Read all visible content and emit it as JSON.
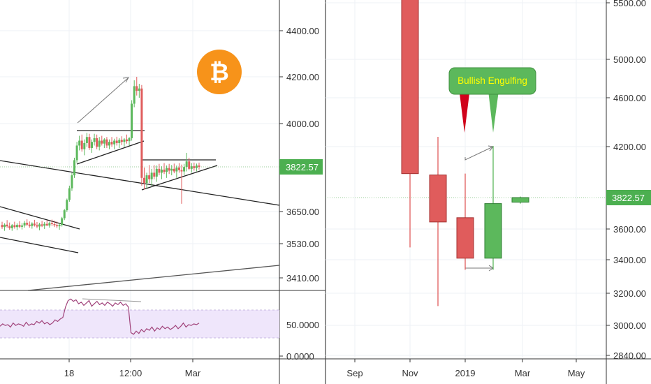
{
  "colors": {
    "up": "#5cb85c",
    "down": "#e05c5c",
    "grid": "#eef1f5",
    "axis_text": "#333333",
    "price_tag": "#4caf50",
    "rsi_band": "#efe6fb",
    "rsi_line": "#a0427a",
    "btc_orange": "#f7931a",
    "callout_green": "#5cb85c",
    "callout_red": "#d0021b"
  },
  "logo": {
    "icon": "bitcoin-icon",
    "glyph": "₿"
  },
  "chart_data": [
    {
      "type": "candlestick",
      "y_ticks": [
        "4400.00",
        "4200.00",
        "4000.00",
        "3650.00",
        "3530.00",
        "3410.00"
      ],
      "y_tick_values": [
        4400,
        4200,
        4000,
        3650,
        3530,
        3410
      ],
      "x_ticks": [
        "18",
        "12:00",
        "Mar"
      ],
      "ylim": [
        3340,
        4490
      ],
      "last_price": "3822.57",
      "candles": [
        {
          "o": 3600,
          "h": 3612,
          "l": 3585,
          "c": 3592
        },
        {
          "o": 3592,
          "h": 3606,
          "l": 3578,
          "c": 3601
        },
        {
          "o": 3601,
          "h": 3618,
          "l": 3590,
          "c": 3595
        },
        {
          "o": 3595,
          "h": 3609,
          "l": 3582,
          "c": 3588
        },
        {
          "o": 3588,
          "h": 3603,
          "l": 3578,
          "c": 3599
        },
        {
          "o": 3599,
          "h": 3612,
          "l": 3586,
          "c": 3592
        },
        {
          "o": 3592,
          "h": 3606,
          "l": 3581,
          "c": 3600
        },
        {
          "o": 3600,
          "h": 3614,
          "l": 3588,
          "c": 3593
        },
        {
          "o": 3593,
          "h": 3607,
          "l": 3583,
          "c": 3598
        },
        {
          "o": 3598,
          "h": 3615,
          "l": 3590,
          "c": 3608
        },
        {
          "o": 3608,
          "h": 3621,
          "l": 3596,
          "c": 3601
        },
        {
          "o": 3601,
          "h": 3613,
          "l": 3590,
          "c": 3596
        },
        {
          "o": 3596,
          "h": 3610,
          "l": 3586,
          "c": 3605
        },
        {
          "o": 3605,
          "h": 3619,
          "l": 3594,
          "c": 3599
        },
        {
          "o": 3599,
          "h": 3611,
          "l": 3588,
          "c": 3594
        },
        {
          "o": 3594,
          "h": 3608,
          "l": 3580,
          "c": 3602
        },
        {
          "o": 3602,
          "h": 3615,
          "l": 3592,
          "c": 3597
        },
        {
          "o": 3597,
          "h": 3611,
          "l": 3585,
          "c": 3604
        },
        {
          "o": 3604,
          "h": 3618,
          "l": 3596,
          "c": 3598
        },
        {
          "o": 3598,
          "h": 3612,
          "l": 3590,
          "c": 3607
        },
        {
          "o": 3607,
          "h": 3620,
          "l": 3596,
          "c": 3603
        },
        {
          "o": 3603,
          "h": 3616,
          "l": 3592,
          "c": 3599
        },
        {
          "o": 3599,
          "h": 3613,
          "l": 3588,
          "c": 3595
        },
        {
          "o": 3595,
          "h": 3606,
          "l": 3582,
          "c": 3600
        },
        {
          "o": 3600,
          "h": 3630,
          "l": 3594,
          "c": 3625
        },
        {
          "o": 3625,
          "h": 3660,
          "l": 3618,
          "c": 3655
        },
        {
          "o": 3655,
          "h": 3700,
          "l": 3648,
          "c": 3695
        },
        {
          "o": 3695,
          "h": 3750,
          "l": 3688,
          "c": 3740
        },
        {
          "o": 3740,
          "h": 3800,
          "l": 3730,
          "c": 3790
        },
        {
          "o": 3790,
          "h": 3860,
          "l": 3780,
          "c": 3850
        },
        {
          "o": 3850,
          "h": 3925,
          "l": 3840,
          "c": 3910
        },
        {
          "o": 3910,
          "h": 3950,
          "l": 3890,
          "c": 3930
        },
        {
          "o": 3930,
          "h": 3955,
          "l": 3885,
          "c": 3895
        },
        {
          "o": 3895,
          "h": 3935,
          "l": 3870,
          "c": 3920
        },
        {
          "o": 3920,
          "h": 3962,
          "l": 3905,
          "c": 3945
        },
        {
          "o": 3945,
          "h": 3958,
          "l": 3892,
          "c": 3900
        },
        {
          "o": 3900,
          "h": 3935,
          "l": 3880,
          "c": 3925
        },
        {
          "o": 3925,
          "h": 3958,
          "l": 3910,
          "c": 3940
        },
        {
          "o": 3940,
          "h": 3955,
          "l": 3895,
          "c": 3905
        },
        {
          "o": 3905,
          "h": 3945,
          "l": 3890,
          "c": 3930
        },
        {
          "o": 3930,
          "h": 3950,
          "l": 3910,
          "c": 3918
        },
        {
          "o": 3918,
          "h": 3940,
          "l": 3900,
          "c": 3935
        },
        {
          "o": 3935,
          "h": 3945,
          "l": 3900,
          "c": 3910
        },
        {
          "o": 3910,
          "h": 3935,
          "l": 3895,
          "c": 3925
        },
        {
          "o": 3925,
          "h": 3945,
          "l": 3905,
          "c": 3915
        },
        {
          "o": 3915,
          "h": 3938,
          "l": 3895,
          "c": 3930
        },
        {
          "o": 3930,
          "h": 3946,
          "l": 3910,
          "c": 3920
        },
        {
          "o": 3920,
          "h": 3940,
          "l": 3900,
          "c": 3933
        },
        {
          "o": 3933,
          "h": 3948,
          "l": 3912,
          "c": 3925
        },
        {
          "o": 3925,
          "h": 3940,
          "l": 3905,
          "c": 3935
        },
        {
          "o": 3935,
          "h": 3955,
          "l": 3918,
          "c": 3928
        },
        {
          "o": 3928,
          "h": 3945,
          "l": 3910,
          "c": 3940
        },
        {
          "o": 3940,
          "h": 4100,
          "l": 3930,
          "c": 4085
        },
        {
          "o": 4085,
          "h": 4185,
          "l": 4070,
          "c": 4160
        },
        {
          "o": 4160,
          "h": 4200,
          "l": 4120,
          "c": 4140
        },
        {
          "o": 4140,
          "h": 4170,
          "l": 4110,
          "c": 4150
        },
        {
          "o": 4150,
          "h": 4165,
          "l": 3750,
          "c": 3780
        },
        {
          "o": 3780,
          "h": 3820,
          "l": 3735,
          "c": 3760
        },
        {
          "o": 3760,
          "h": 3800,
          "l": 3740,
          "c": 3790
        },
        {
          "o": 3790,
          "h": 3830,
          "l": 3760,
          "c": 3775
        },
        {
          "o": 3775,
          "h": 3815,
          "l": 3750,
          "c": 3800
        },
        {
          "o": 3800,
          "h": 3830,
          "l": 3775,
          "c": 3785
        },
        {
          "o": 3785,
          "h": 3828,
          "l": 3765,
          "c": 3815
        },
        {
          "o": 3815,
          "h": 3835,
          "l": 3790,
          "c": 3800
        },
        {
          "o": 3800,
          "h": 3825,
          "l": 3775,
          "c": 3812
        },
        {
          "o": 3812,
          "h": 3838,
          "l": 3795,
          "c": 3803
        },
        {
          "o": 3803,
          "h": 3828,
          "l": 3780,
          "c": 3818
        },
        {
          "o": 3818,
          "h": 3835,
          "l": 3795,
          "c": 3808
        },
        {
          "o": 3808,
          "h": 3830,
          "l": 3790,
          "c": 3815
        },
        {
          "o": 3815,
          "h": 3836,
          "l": 3798,
          "c": 3805
        },
        {
          "o": 3805,
          "h": 3828,
          "l": 3780,
          "c": 3820
        },
        {
          "o": 3820,
          "h": 3838,
          "l": 3800,
          "c": 3810
        },
        {
          "o": 3810,
          "h": 3832,
          "l": 3680,
          "c": 3805
        },
        {
          "o": 3805,
          "h": 3835,
          "l": 3790,
          "c": 3822
        },
        {
          "o": 3822,
          "h": 3880,
          "l": 3805,
          "c": 3845
        },
        {
          "o": 3845,
          "h": 3860,
          "l": 3810,
          "c": 3815
        },
        {
          "o": 3815,
          "h": 3838,
          "l": 3800,
          "c": 3825
        },
        {
          "o": 3825,
          "h": 3840,
          "l": 3808,
          "c": 3818
        },
        {
          "o": 3818,
          "h": 3836,
          "l": 3805,
          "c": 3828
        },
        {
          "o": 3828,
          "h": 3840,
          "l": 3812,
          "c": 3822.57
        }
      ],
      "rsi": {
        "y_ticks": [
          "50.0000",
          "0.0000"
        ],
        "values": [
          48,
          51,
          49,
          50,
          47,
          52,
          49,
          51,
          50,
          48,
          53,
          49,
          51,
          50,
          54,
          52,
          55,
          51,
          53,
          50,
          52,
          56,
          54,
          57,
          59,
          72,
          80,
          82,
          79,
          81,
          76,
          78,
          74,
          77,
          80,
          73,
          76,
          79,
          75,
          77,
          74,
          78,
          76,
          73,
          77,
          75,
          78,
          74,
          76,
          72,
          40,
          38,
          42,
          39,
          44,
          41,
          45,
          43,
          47,
          42,
          46,
          44,
          48,
          45,
          47,
          44,
          46,
          49,
          45,
          48,
          52,
          47,
          50,
          49,
          51,
          50,
          52
        ]
      }
    },
    {
      "type": "candlestick",
      "y_ticks": [
        "5500.00",
        "5000.00",
        "4600.00",
        "4200.00",
        "3600.00",
        "3400.00",
        "3200.00",
        "3000.00",
        "2840.00"
      ],
      "y_tick_values": [
        5500,
        5000,
        4600,
        4200,
        3600,
        3400,
        3200,
        3000,
        2840
      ],
      "x_ticks": [
        "Sep",
        "Nov",
        "2019",
        "Mar",
        "May"
      ],
      "last_price": "3822.57",
      "candles": [
        {
          "o": 5600,
          "h": 5650,
          "l": 3480,
          "c": 4000
        },
        {
          "o": 3990,
          "h": 4280,
          "l": 3120,
          "c": 3650
        },
        {
          "o": 3680,
          "h": 4000,
          "l": 3340,
          "c": 3410
        },
        {
          "o": 3410,
          "h": 4205,
          "l": 3340,
          "c": 3780
        },
        {
          "o": 3790,
          "h": 3830,
          "l": 3780,
          "c": 3822.57
        }
      ],
      "annotation": "Bullish Engulfing"
    }
  ]
}
